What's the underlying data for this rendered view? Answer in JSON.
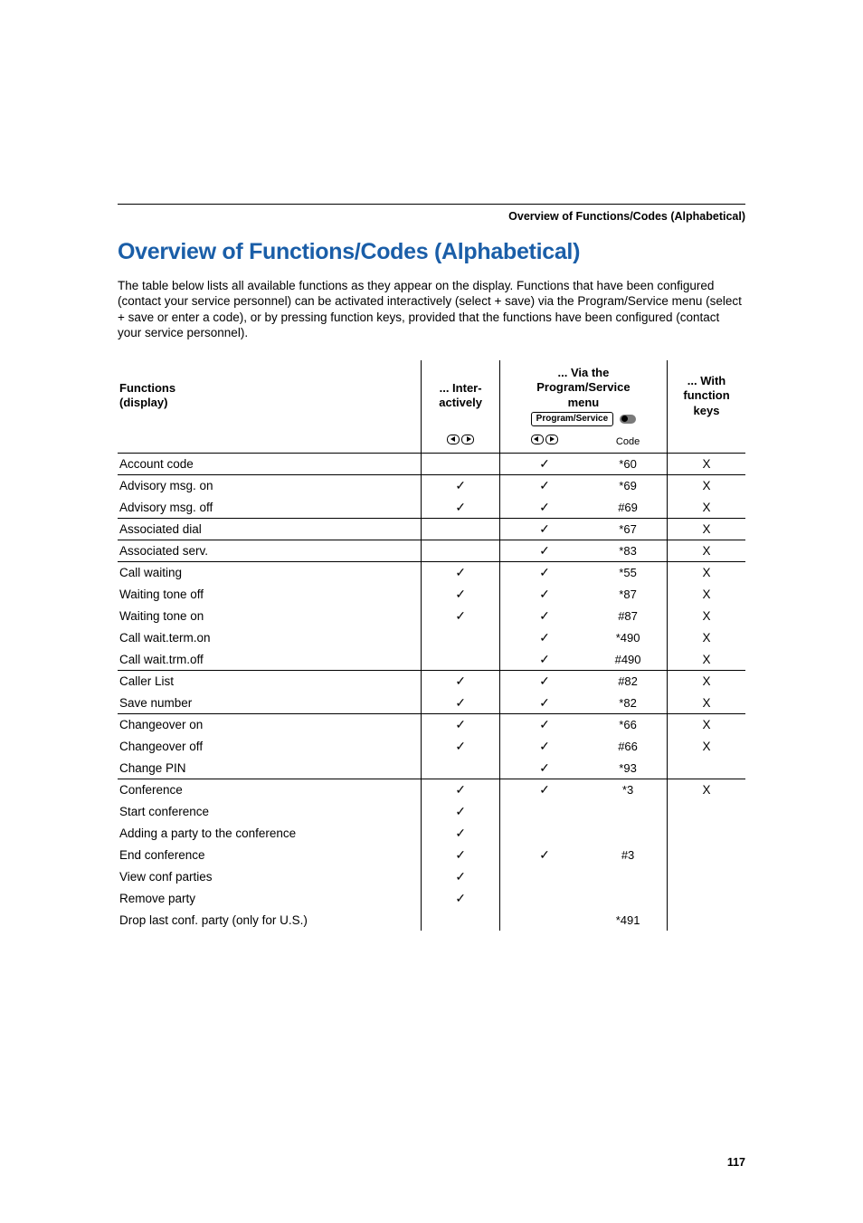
{
  "header_right": "Overview of Functions/Codes (Alphabetical)",
  "title": "Overview of Functions/Codes (Alphabetical)",
  "intro": "The table below lists all available functions as they appear on the display. Functions that have been configured (contact your service personnel) can be activated interactively (select + save) via the Program/Service menu (select + save or enter a code), or by pressing function keys, provided that the functions have been configured (contact your service personnel).",
  "columns": {
    "functions_line1": "Functions",
    "functions_line2": "(display)",
    "inter_line1": "... Inter-",
    "inter_line2": "actively",
    "via_line1": "... Via the",
    "via_line2": "Program/Service",
    "via_line3": "menu",
    "keys_line1": "... With",
    "keys_line2": "function",
    "keys_line3": "keys",
    "ps_pill": "Program/Service",
    "code_label": "Code"
  },
  "rows": [
    {
      "name": "Account code",
      "inter": "",
      "ps": "✓",
      "code": "*60",
      "keys": "X",
      "sep": true
    },
    {
      "name": "Advisory msg. on",
      "inter": "✓",
      "ps": "✓",
      "code": "*69",
      "keys": "X",
      "sep": true
    },
    {
      "name": "Advisory msg. off",
      "inter": "✓",
      "ps": "✓",
      "code": "#69",
      "keys": "X",
      "sep": false
    },
    {
      "name": "Associated dial",
      "inter": "",
      "ps": "✓",
      "code": "*67",
      "keys": "X",
      "sep": true
    },
    {
      "name": "Associated serv.",
      "inter": "",
      "ps": "✓",
      "code": "*83",
      "keys": "X",
      "sep": true
    },
    {
      "name": "Call waiting",
      "inter": "✓",
      "ps": "✓",
      "code": "*55",
      "keys": "X",
      "sep": true
    },
    {
      "name": "Waiting tone off",
      "inter": "✓",
      "ps": "✓",
      "code": "*87",
      "keys": "X",
      "sep": false
    },
    {
      "name": "Waiting tone on",
      "inter": "✓",
      "ps": "✓",
      "code": "#87",
      "keys": "X",
      "sep": false
    },
    {
      "name": "Call wait.term.on",
      "inter": "",
      "ps": "✓",
      "code": "*490",
      "keys": "X",
      "sep": false
    },
    {
      "name": "Call wait.trm.off",
      "inter": "",
      "ps": "✓",
      "code": "#490",
      "keys": "X",
      "sep": false
    },
    {
      "name": "Caller List",
      "inter": "✓",
      "ps": "✓",
      "code": "#82",
      "keys": "X",
      "sep": true
    },
    {
      "name": "Save number",
      "inter": "✓",
      "ps": "✓",
      "code": "*82",
      "keys": "X",
      "sep": false
    },
    {
      "name": "Changeover on",
      "inter": "✓",
      "ps": "✓",
      "code": "*66",
      "keys": "X",
      "sep": true
    },
    {
      "name": "Changeover off",
      "inter": "✓",
      "ps": "✓",
      "code": "#66",
      "keys": "X",
      "sep": false
    },
    {
      "name": "Change PIN",
      "inter": "",
      "ps": "✓",
      "code": "*93",
      "keys": "",
      "sep": false
    },
    {
      "name": "Conference",
      "inter": "✓",
      "ps": "✓",
      "code": "*3",
      "keys": "X",
      "sep": true
    },
    {
      "name": "Start conference",
      "inter": "✓",
      "ps": "",
      "code": "",
      "keys": "",
      "sep": false
    },
    {
      "name": "Adding a party to the conference",
      "inter": "✓",
      "ps": "",
      "code": "",
      "keys": "",
      "sep": false
    },
    {
      "name": "End conference",
      "inter": "✓",
      "ps": "✓",
      "code": "#3",
      "keys": "",
      "sep": false
    },
    {
      "name": "View conf parties",
      "inter": "✓",
      "ps": "",
      "code": "",
      "keys": "",
      "sep": false
    },
    {
      "name": "Remove party",
      "inter": "✓",
      "ps": "",
      "code": "",
      "keys": "",
      "sep": false
    },
    {
      "name": "Drop last conf. party (only for U.S.)",
      "inter": "",
      "ps": "",
      "code": "*491",
      "keys": "",
      "sep": false
    }
  ],
  "page_number": "117",
  "colors": {
    "title_color": "#1a5ea8",
    "text_color": "#000000",
    "rule_color": "#000000",
    "background": "#ffffff"
  },
  "typography": {
    "body_fontsize_pt": 10,
    "title_fontsize_pt": 19,
    "header_small_pt": 9.5
  }
}
